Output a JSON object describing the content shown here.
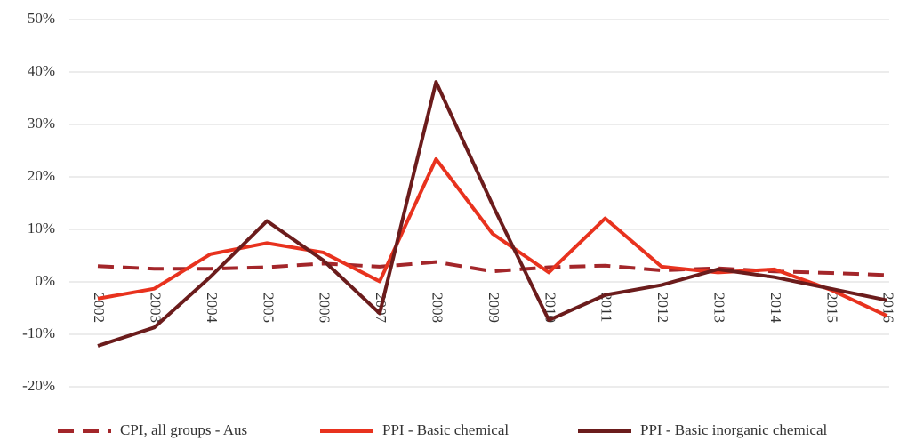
{
  "chart_data": {
    "type": "line",
    "categories": [
      "2002",
      "2003",
      "2004",
      "2005",
      "2006",
      "2007",
      "2008",
      "2009",
      "2010",
      "2011",
      "2012",
      "2013",
      "2014",
      "2015",
      "2016"
    ],
    "series": [
      {
        "name": "CPI, all groups - Aus",
        "color": "#a3262a",
        "line_style": "dashed",
        "values": [
          3.0,
          2.5,
          2.5,
          2.8,
          3.5,
          2.9,
          3.8,
          2.0,
          2.8,
          3.1,
          2.2,
          2.6,
          2.0,
          1.7,
          1.3
        ]
      },
      {
        "name": "PPI - Basic chemical",
        "color": "#e8321e",
        "line_style": "solid",
        "values": [
          -3.2,
          -1.3,
          5.3,
          7.4,
          5.6,
          0.1,
          23.4,
          9.2,
          1.8,
          12.1,
          2.9,
          1.8,
          2.4,
          -1.5,
          -6.5
        ]
      },
      {
        "name": "PPI - Basic inorganic chemical",
        "color": "#6b1c1c",
        "line_style": "solid",
        "values": [
          -12.2,
          -8.7,
          1.0,
          11.6,
          4.1,
          -6.0,
          38.1,
          14.7,
          -7.3,
          -2.5,
          -0.6,
          2.4,
          0.9,
          -1.3,
          -3.5
        ]
      }
    ],
    "ylim": [
      -20,
      50
    ],
    "yticks": [
      {
        "value": -20,
        "label": "-20%"
      },
      {
        "value": -10,
        "label": "-10%"
      },
      {
        "value": 0,
        "label": "0%"
      },
      {
        "value": 10,
        "label": "10%"
      },
      {
        "value": 20,
        "label": "20%"
      },
      {
        "value": 30,
        "label": "30%"
      },
      {
        "value": 40,
        "label": "40%"
      },
      {
        "value": 50,
        "label": "50%"
      }
    ],
    "grid": true,
    "legend": "bottom"
  }
}
